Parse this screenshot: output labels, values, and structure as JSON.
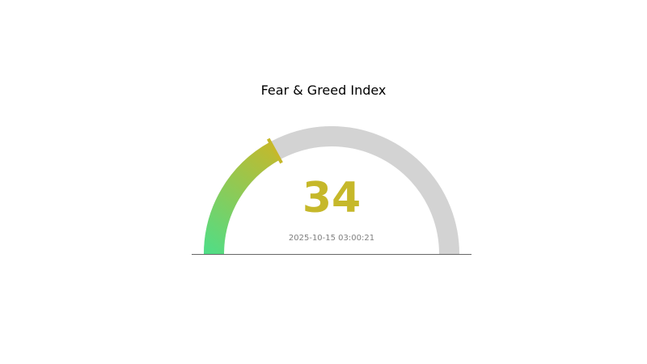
{
  "chart_data": {
    "type": "gauge",
    "title": "Fear & Greed Index",
    "value": 34,
    "range": [
      0,
      100
    ],
    "timestamp": "2025-10-15 03:00:21",
    "colors": {
      "track": "#d3d3d3",
      "gradient_start": "#4ede88",
      "gradient_end": "#c6b82a",
      "value_text": "#c6b82a",
      "timestamp_text": "#808080",
      "baseline": "#666666"
    }
  }
}
